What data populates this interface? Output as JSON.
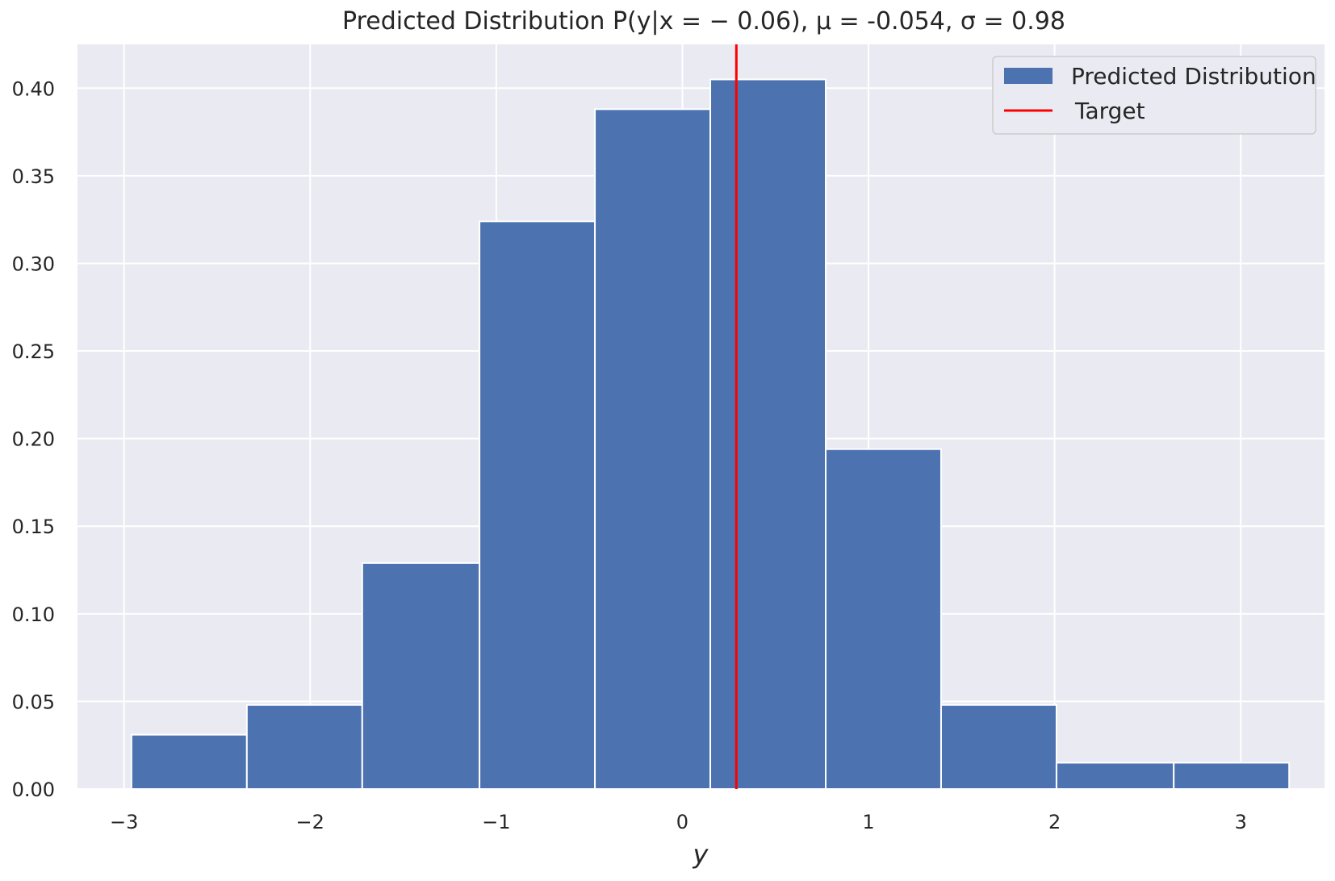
{
  "chart_data": {
    "type": "bar",
    "title": "Predicted Distribution P(y|x = − 0.06), μ = -0.054, σ = 0.98",
    "xlabel": "y",
    "ylabel": "",
    "xlim": [
      -3.25,
      3.45
    ],
    "ylim": [
      0,
      0.425
    ],
    "grid": true,
    "legend_position": "top-right",
    "bin_edges": [
      -2.96,
      -2.34,
      -1.72,
      -1.09,
      -0.47,
      0.15,
      0.77,
      1.39,
      2.01,
      2.64,
      3.26
    ],
    "values": [
      0.031,
      0.048,
      0.129,
      0.324,
      0.388,
      0.405,
      0.194,
      0.048,
      0.015,
      0.015
    ],
    "target": 0.29,
    "x_ticks": [
      {
        "value": -3,
        "label": "−3"
      },
      {
        "value": -2,
        "label": "−2"
      },
      {
        "value": -1,
        "label": "−1"
      },
      {
        "value": 0,
        "label": "0"
      },
      {
        "value": 1,
        "label": "1"
      },
      {
        "value": 2,
        "label": "2"
      },
      {
        "value": 3,
        "label": "3"
      }
    ],
    "y_ticks": [
      {
        "value": 0.0,
        "label": "0.00"
      },
      {
        "value": 0.05,
        "label": "0.05"
      },
      {
        "value": 0.1,
        "label": "0.10"
      },
      {
        "value": 0.15,
        "label": "0.15"
      },
      {
        "value": 0.2,
        "label": "0.20"
      },
      {
        "value": 0.25,
        "label": "0.25"
      },
      {
        "value": 0.3,
        "label": "0.30"
      },
      {
        "value": 0.35,
        "label": "0.35"
      },
      {
        "value": 0.4,
        "label": "0.40"
      }
    ],
    "legend": [
      {
        "label": "Predicted Distribution",
        "kind": "patch",
        "color": "#4c72b0"
      },
      {
        "label": "Target",
        "kind": "line",
        "color": "#ff0000"
      }
    ],
    "colors": {
      "bar": "#4c72b0",
      "target": "#ff0000",
      "background": "#eaeaf2",
      "grid": "#ffffff"
    }
  }
}
